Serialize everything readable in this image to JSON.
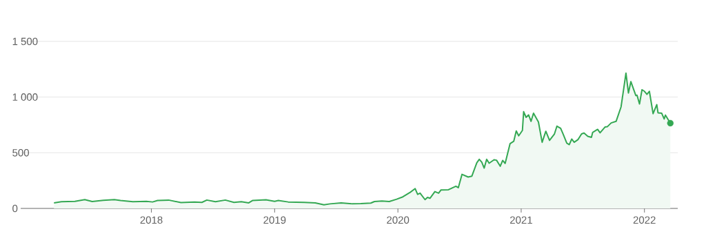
{
  "chart_data": {
    "type": "area",
    "x": [
      2017.21,
      2017.27,
      2017.38,
      2017.46,
      2017.52,
      2017.61,
      2017.7,
      2017.75,
      2017.85,
      2017.96,
      2018.01,
      2018.05,
      2018.14,
      2018.24,
      2018.35,
      2018.41,
      2018.45,
      2018.52,
      2018.6,
      2018.67,
      2018.73,
      2018.79,
      2018.82,
      2018.93,
      2019.0,
      2019.03,
      2019.11,
      2019.24,
      2019.33,
      2019.4,
      2019.45,
      2019.54,
      2019.63,
      2019.7,
      2019.78,
      2019.81,
      2019.87,
      2019.93,
      2019.99,
      2020.04,
      2020.1,
      2020.14,
      2020.16,
      2020.18,
      2020.22,
      2020.24,
      2020.26,
      2020.3,
      2020.33,
      2020.35,
      2020.41,
      2020.47,
      2020.49,
      2020.52,
      2020.57,
      2020.6,
      2020.64,
      2020.66,
      2020.68,
      2020.7,
      2020.72,
      2020.74,
      2020.78,
      2020.8,
      2020.83,
      2020.85,
      2020.87,
      2020.91,
      2020.94,
      2020.96,
      2020.98,
      2021.01,
      2021.02,
      2021.04,
      2021.06,
      2021.08,
      2021.1,
      2021.14,
      2021.17,
      2021.2,
      2021.23,
      2021.27,
      2021.29,
      2021.32,
      2021.34,
      2021.37,
      2021.39,
      2021.41,
      2021.43,
      2021.46,
      2021.49,
      2021.51,
      2021.54,
      2021.57,
      2021.58,
      2021.62,
      2021.64,
      2021.68,
      2021.7,
      2021.73,
      2021.77,
      2021.81,
      2021.83,
      2021.85,
      2021.87,
      2021.89,
      2021.91,
      2021.93,
      2021.94,
      2021.96,
      2021.98,
      2022.0,
      2022.02,
      2022.04,
      2022.07,
      2022.1,
      2022.11,
      2022.14,
      2022.16,
      2022.17,
      2022.21
    ],
    "series": [
      {
        "color": "#34a853",
        "values": [
          50,
          60,
          64,
          79,
          62,
          73,
          79,
          71,
          60,
          64,
          58,
          71,
          75,
          52,
          58,
          54,
          75,
          60,
          75,
          54,
          60,
          50,
          71,
          77,
          64,
          71,
          58,
          54,
          50,
          33,
          41,
          50,
          41,
          43,
          48,
          62,
          66,
          62,
          83,
          104,
          145,
          178,
          126,
          137,
          79,
          99,
          91,
          151,
          137,
          166,
          168,
          199,
          186,
          306,
          282,
          290,
          410,
          441,
          416,
          362,
          441,
          406,
          437,
          433,
          379,
          431,
          404,
          582,
          604,
          696,
          652,
          700,
          869,
          818,
          840,
          782,
          855,
          776,
          594,
          693,
          611,
          669,
          739,
          720,
          669,
          586,
          573,
          623,
          594,
          617,
          669,
          677,
          648,
          638,
          683,
          710,
          679,
          731,
          735,
          768,
          782,
          911,
          1062,
          1215,
          1037,
          1139,
          1076,
          1014,
          1016,
          938,
          1066,
          1052,
          1025,
          1052,
          851,
          932,
          859,
          855,
          803,
          838,
          766
        ]
      },
      {
        "type": "scatter",
        "color": "#34a853",
        "marker": "circle",
        "x": [
          2022.21
        ],
        "values": [
          766
        ]
      }
    ],
    "xlim": [
      2016.94,
      2022.27
    ],
    "ylim": [
      0,
      1500
    ],
    "xticks": [
      2018,
      2019,
      2020,
      2021,
      2022
    ],
    "yticks": [
      0,
      500,
      {
        "value": 1000,
        "label": "1 000"
      },
      {
        "value": 1500,
        "label": "1 500"
      }
    ],
    "grid": "y"
  }
}
